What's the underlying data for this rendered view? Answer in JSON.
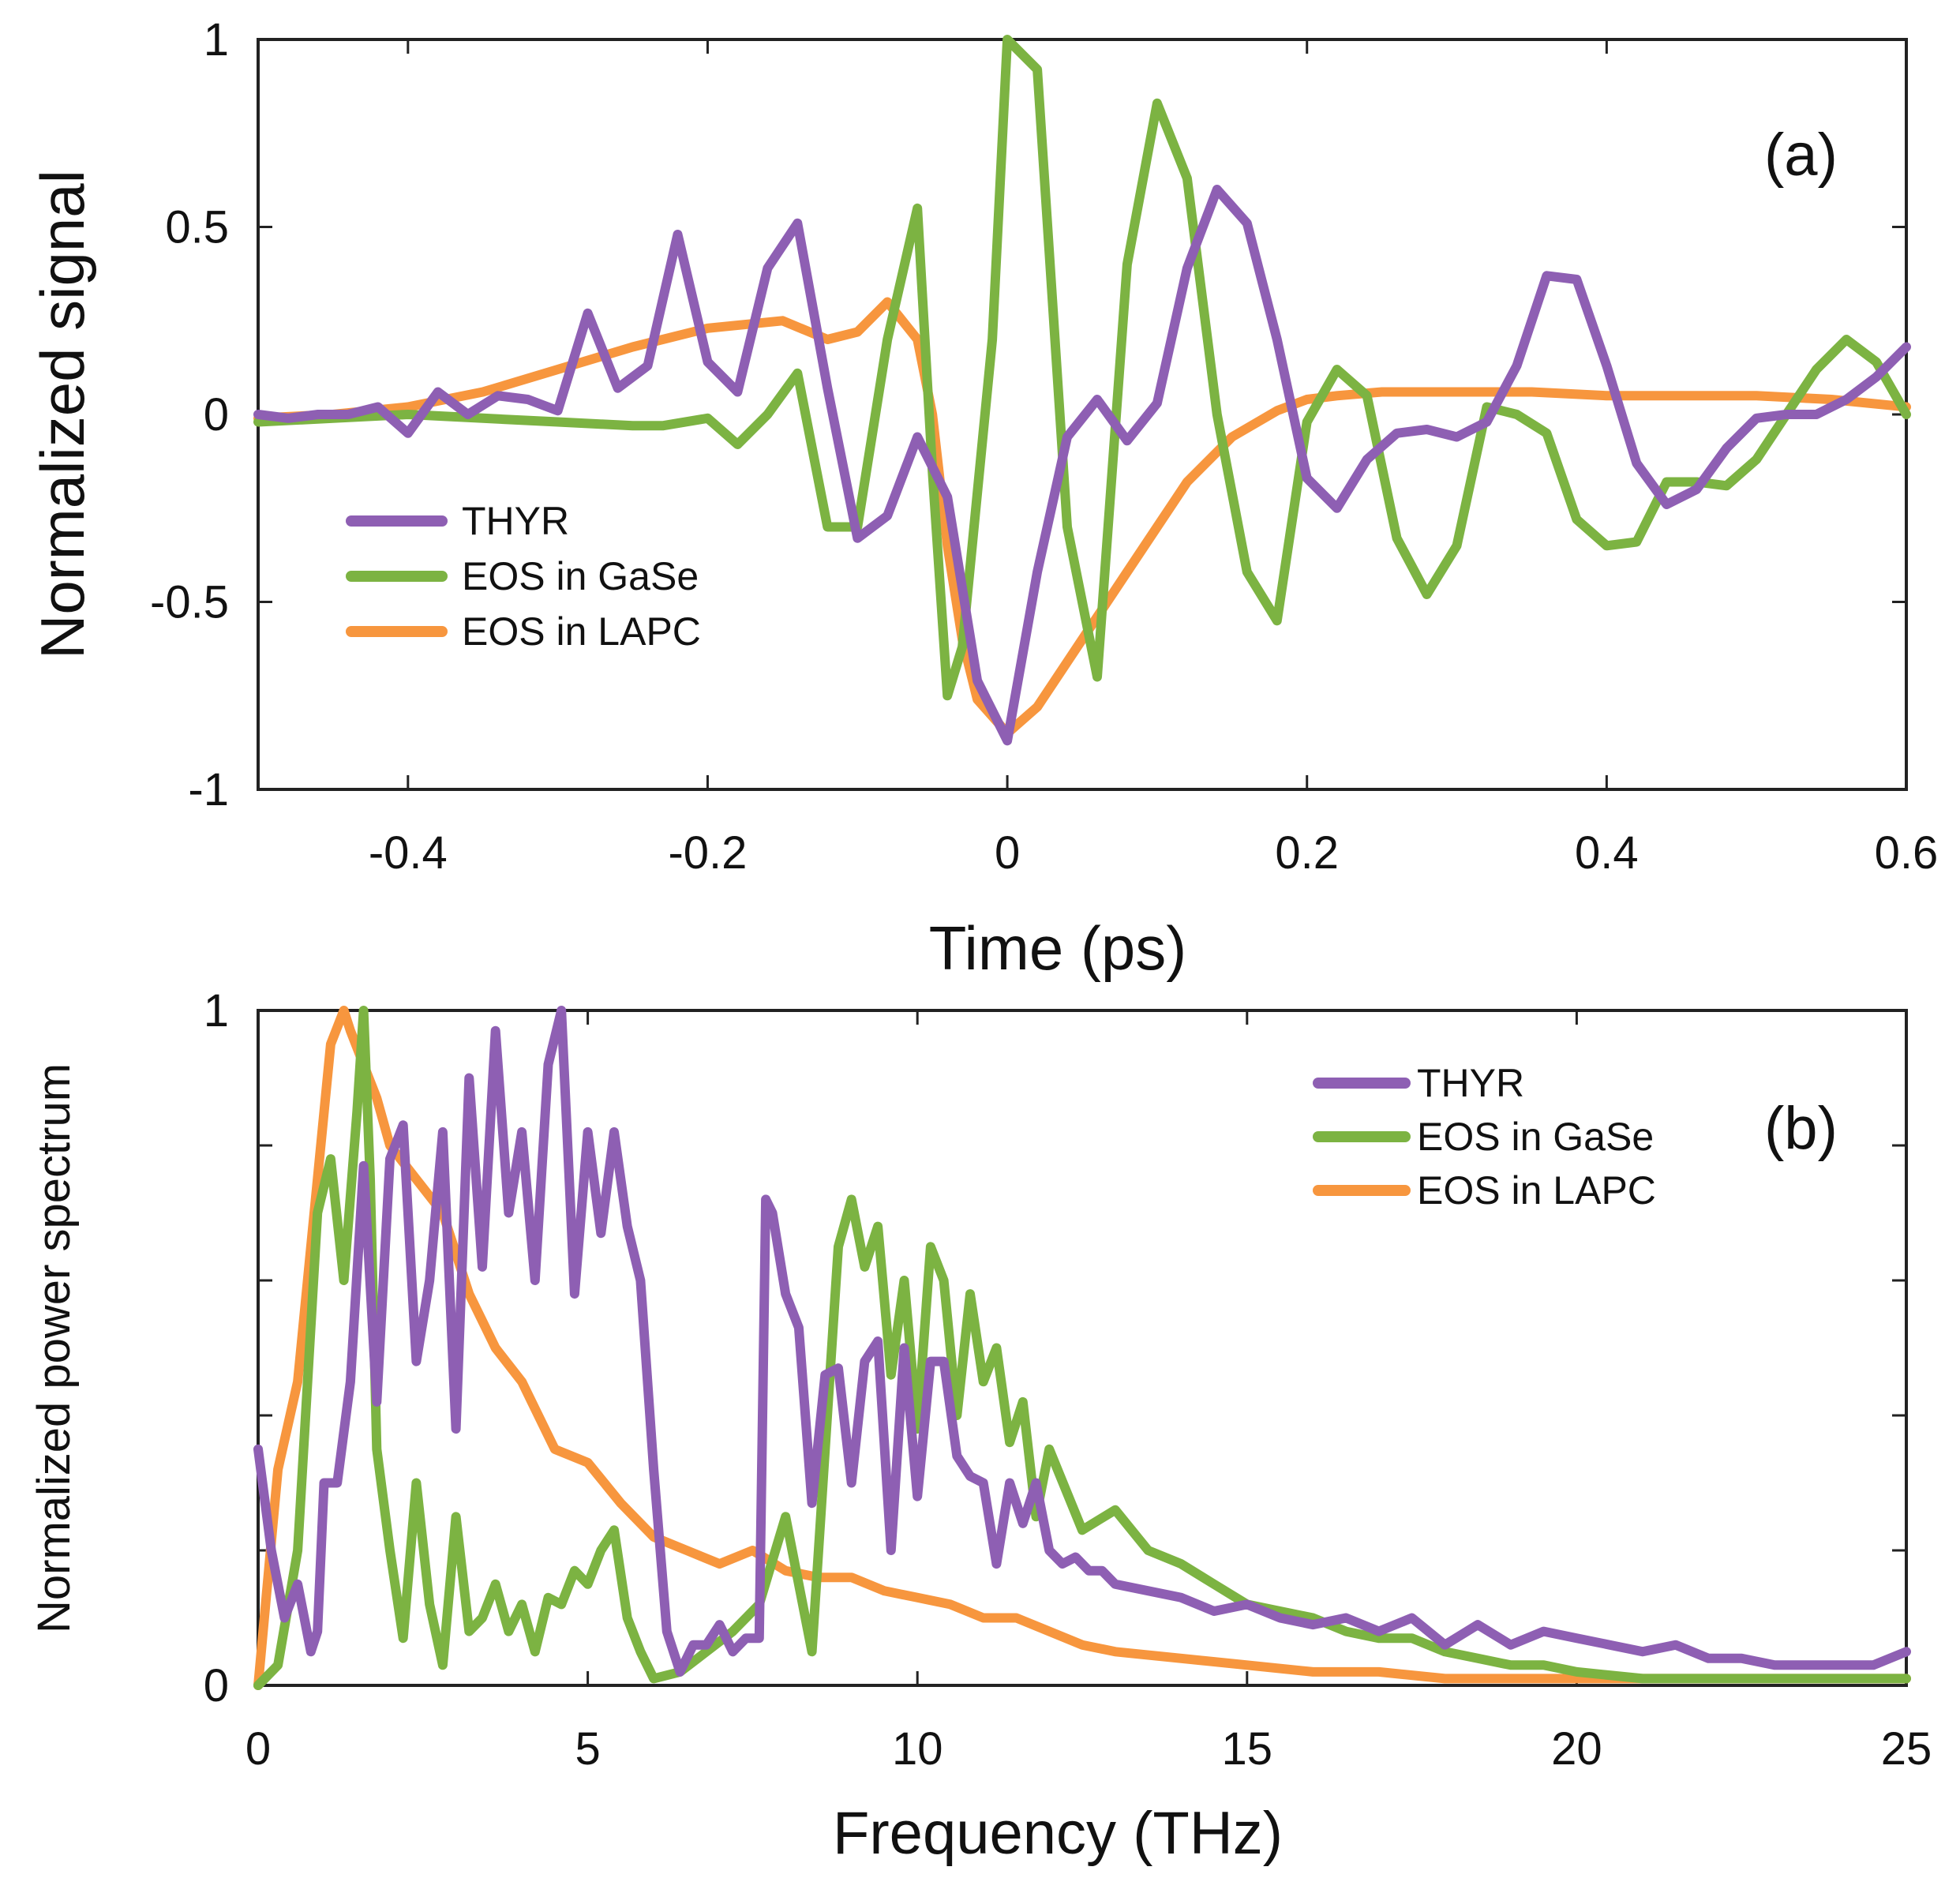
{
  "chart_data": [
    {
      "type": "line",
      "panel_label": "(a)",
      "xlabel": "Time (ps)",
      "ylabel": "Normalized signal",
      "xlim": [
        -0.5,
        0.6
      ],
      "ylim": [
        -1,
        1
      ],
      "xticks": [
        -0.4,
        -0.2,
        0,
        0.2,
        0.4,
        0.6
      ],
      "xtick_labels": [
        "-0.4",
        "-0.2",
        "0",
        "0.2",
        "0.4",
        "0.6"
      ],
      "yticks": [
        -1,
        -0.5,
        0,
        0.5,
        1
      ],
      "ytick_labels": [
        "-1",
        "-0.5",
        "0",
        "0.5",
        "1"
      ],
      "grid": false,
      "legend_position": "left",
      "series": [
        {
          "name": "THYR",
          "color": "#8e5fb3",
          "x": [
            -0.5,
            -0.48,
            -0.46,
            -0.44,
            -0.42,
            -0.4,
            -0.38,
            -0.36,
            -0.34,
            -0.32,
            -0.3,
            -0.28,
            -0.26,
            -0.24,
            -0.22,
            -0.2,
            -0.18,
            -0.16,
            -0.14,
            -0.12,
            -0.1,
            -0.08,
            -0.06,
            -0.04,
            -0.02,
            0,
            0.02,
            0.04,
            0.06,
            0.08,
            0.1,
            0.12,
            0.14,
            0.16,
            0.18,
            0.2,
            0.22,
            0.24,
            0.26,
            0.28,
            0.3,
            0.32,
            0.34,
            0.36,
            0.38,
            0.4,
            0.42,
            0.44,
            0.46,
            0.48,
            0.5,
            0.52,
            0.54,
            0.56,
            0.58,
            0.6
          ],
          "y": [
            0,
            -0.01,
            0,
            0,
            0.02,
            -0.05,
            0.06,
            0,
            0.05,
            0.04,
            0.01,
            0.27,
            0.07,
            0.13,
            0.48,
            0.14,
            0.06,
            0.39,
            0.51,
            0.07,
            -0.33,
            -0.27,
            -0.06,
            -0.22,
            -0.71,
            -0.87,
            -0.42,
            -0.06,
            0.04,
            -0.07,
            0.03,
            0.39,
            0.6,
            0.51,
            0.2,
            -0.17,
            -0.25,
            -0.12,
            -0.05,
            -0.04,
            -0.06,
            -0.02,
            0.13,
            0.37,
            0.36,
            0.13,
            -0.13,
            -0.24,
            -0.2,
            -0.09,
            -0.01,
            0,
            0,
            0.04,
            0.1,
            0.18
          ]
        },
        {
          "name": "EOS in GaSe",
          "color": "#7cb342",
          "x": [
            -0.5,
            -0.45,
            -0.4,
            -0.35,
            -0.3,
            -0.25,
            -0.23,
            -0.2,
            -0.18,
            -0.16,
            -0.14,
            -0.12,
            -0.1,
            -0.08,
            -0.06,
            -0.05,
            -0.04,
            -0.03,
            -0.01,
            0,
            0.02,
            0.04,
            0.06,
            0.08,
            0.1,
            0.12,
            0.14,
            0.16,
            0.18,
            0.2,
            0.22,
            0.24,
            0.26,
            0.28,
            0.3,
            0.32,
            0.34,
            0.36,
            0.38,
            0.4,
            0.42,
            0.44,
            0.46,
            0.48,
            0.5,
            0.52,
            0.54,
            0.56,
            0.58,
            0.6
          ],
          "y": [
            -0.02,
            -0.01,
            0,
            -0.01,
            -0.02,
            -0.03,
            -0.03,
            -0.01,
            -0.08,
            0.0,
            0.11,
            -0.3,
            -0.3,
            0.2,
            0.55,
            -0.15,
            -0.75,
            -0.62,
            0.2,
            1.0,
            0.92,
            -0.3,
            -0.7,
            0.4,
            0.83,
            0.63,
            0.0,
            -0.42,
            -0.55,
            -0.02,
            0.12,
            0.05,
            -0.33,
            -0.48,
            -0.35,
            0.02,
            0.0,
            -0.05,
            -0.28,
            -0.35,
            -0.34,
            -0.18,
            -0.18,
            -0.19,
            -0.12,
            0.0,
            0.12,
            0.2,
            0.14,
            0.0
          ]
        },
        {
          "name": "EOS in LAPC",
          "color": "#f7963e",
          "x": [
            -0.5,
            -0.45,
            -0.4,
            -0.35,
            -0.3,
            -0.25,
            -0.2,
            -0.15,
            -0.12,
            -0.1,
            -0.08,
            -0.06,
            -0.05,
            -0.04,
            -0.03,
            -0.02,
            0,
            0.02,
            0.05,
            0.08,
            0.1,
            0.12,
            0.15,
            0.18,
            0.2,
            0.22,
            0.25,
            0.3,
            0.35,
            0.4,
            0.45,
            0.5,
            0.55,
            0.6
          ],
          "y": [
            -0.01,
            0,
            0.02,
            0.06,
            0.12,
            0.18,
            0.23,
            0.25,
            0.2,
            0.22,
            0.3,
            0.2,
            0.0,
            -0.35,
            -0.6,
            -0.76,
            -0.85,
            -0.78,
            -0.6,
            -0.42,
            -0.3,
            -0.18,
            -0.06,
            0.01,
            0.04,
            0.05,
            0.06,
            0.06,
            0.06,
            0.05,
            0.05,
            0.05,
            0.04,
            0.02
          ]
        }
      ]
    },
    {
      "type": "line",
      "panel_label": "(b)",
      "xlabel": "Frequency (THz)",
      "ylabel": "Normalized power spectrum",
      "xlim": [
        0,
        25
      ],
      "ylim": [
        0,
        1
      ],
      "xticks": [
        0,
        5,
        10,
        15,
        20,
        25
      ],
      "xtick_labels": [
        "0",
        "5",
        "10",
        "15",
        "20",
        "25"
      ],
      "yticks": [
        0,
        0.2,
        0.4,
        0.6,
        0.8,
        1
      ],
      "ytick_labels": [
        "0",
        "",
        "",
        "",
        "",
        "1"
      ],
      "grid": false,
      "legend_position": "top-right",
      "series": [
        {
          "name": "THYR",
          "color": "#8e5fb3",
          "x": [
            0,
            0.2,
            0.4,
            0.6,
            0.8,
            0.9,
            1.0,
            1.2,
            1.4,
            1.6,
            1.8,
            2.0,
            2.2,
            2.4,
            2.6,
            2.8,
            3.0,
            3.2,
            3.4,
            3.6,
            3.8,
            4.0,
            4.2,
            4.4,
            4.6,
            4.8,
            5.0,
            5.2,
            5.4,
            5.6,
            5.8,
            6.0,
            6.2,
            6.4,
            6.6,
            6.8,
            7.0,
            7.2,
            7.4,
            7.6,
            7.7,
            7.8,
            8.0,
            8.2,
            8.4,
            8.6,
            8.8,
            9.0,
            9.2,
            9.4,
            9.6,
            9.8,
            10.0,
            10.2,
            10.4,
            10.6,
            10.8,
            11.0,
            11.2,
            11.4,
            11.6,
            11.8,
            12.0,
            12.2,
            12.4,
            12.6,
            12.8,
            13.0,
            13.5,
            14.0,
            14.5,
            15.0,
            15.5,
            16.0,
            16.5,
            17.0,
            17.5,
            18.0,
            18.5,
            19.0,
            19.5,
            20.0,
            20.5,
            21.0,
            21.5,
            22.0,
            22.5,
            23.0,
            23.5,
            24.0,
            24.5,
            25.0
          ],
          "y": [
            0.35,
            0.2,
            0.1,
            0.15,
            0.05,
            0.08,
            0.3,
            0.3,
            0.45,
            0.77,
            0.42,
            0.78,
            0.83,
            0.48,
            0.6,
            0.82,
            0.38,
            0.9,
            0.62,
            0.97,
            0.7,
            0.82,
            0.6,
            0.92,
            1.0,
            0.58,
            0.82,
            0.67,
            0.82,
            0.68,
            0.6,
            0.32,
            0.08,
            0.02,
            0.06,
            0.06,
            0.09,
            0.05,
            0.07,
            0.07,
            0.72,
            0.7,
            0.58,
            0.53,
            0.27,
            0.46,
            0.47,
            0.3,
            0.48,
            0.51,
            0.2,
            0.5,
            0.28,
            0.48,
            0.48,
            0.34,
            0.31,
            0.3,
            0.18,
            0.3,
            0.24,
            0.3,
            0.2,
            0.18,
            0.19,
            0.17,
            0.17,
            0.15,
            0.14,
            0.13,
            0.11,
            0.12,
            0.1,
            0.09,
            0.1,
            0.08,
            0.1,
            0.06,
            0.09,
            0.06,
            0.08,
            0.07,
            0.06,
            0.05,
            0.06,
            0.04,
            0.04,
            0.03,
            0.03,
            0.03,
            0.03,
            0.05
          ]
        },
        {
          "name": "EOS in GaSe",
          "color": "#7cb342",
          "x": [
            0,
            0.3,
            0.6,
            0.9,
            1.1,
            1.3,
            1.5,
            1.6,
            1.7,
            1.8,
            2.0,
            2.2,
            2.4,
            2.6,
            2.8,
            3.0,
            3.2,
            3.4,
            3.6,
            3.8,
            4.0,
            4.2,
            4.4,
            4.6,
            4.8,
            5.0,
            5.2,
            5.4,
            5.6,
            5.8,
            6.0,
            6.4,
            6.8,
            7.2,
            7.6,
            8.0,
            8.4,
            8.8,
            9.0,
            9.2,
            9.4,
            9.6,
            9.8,
            10.0,
            10.2,
            10.4,
            10.6,
            10.8,
            11.0,
            11.2,
            11.4,
            11.6,
            11.8,
            12.0,
            12.5,
            13.0,
            13.5,
            14.0,
            14.5,
            15.0,
            15.5,
            16.0,
            16.5,
            17.0,
            17.5,
            18.0,
            18.5,
            19.0,
            19.5,
            20.0,
            21.0,
            22.0,
            23.0,
            24.0,
            25.0
          ],
          "y": [
            0,
            0.03,
            0.2,
            0.7,
            0.78,
            0.6,
            0.85,
            1.0,
            0.75,
            0.35,
            0.2,
            0.07,
            0.3,
            0.12,
            0.03,
            0.25,
            0.08,
            0.1,
            0.15,
            0.08,
            0.12,
            0.05,
            0.13,
            0.12,
            0.17,
            0.15,
            0.2,
            0.23,
            0.1,
            0.05,
            0.01,
            0.02,
            0.05,
            0.08,
            0.12,
            0.25,
            0.05,
            0.65,
            0.72,
            0.62,
            0.68,
            0.46,
            0.6,
            0.38,
            0.65,
            0.6,
            0.4,
            0.58,
            0.45,
            0.5,
            0.36,
            0.42,
            0.25,
            0.35,
            0.23,
            0.26,
            0.2,
            0.18,
            0.15,
            0.12,
            0.11,
            0.1,
            0.08,
            0.07,
            0.07,
            0.05,
            0.04,
            0.03,
            0.03,
            0.02,
            0.01,
            0.01,
            0.01,
            0.01,
            0.01
          ]
        },
        {
          "name": "EOS in LAPC",
          "color": "#f7963e",
          "x": [
            0,
            0.3,
            0.6,
            0.9,
            1.1,
            1.3,
            1.4,
            1.6,
            1.8,
            2.0,
            2.4,
            2.8,
            3.2,
            3.6,
            4.0,
            4.5,
            5.0,
            5.5,
            6.0,
            6.5,
            7.0,
            7.5,
            8.0,
            8.5,
            9.0,
            9.5,
            10.0,
            10.5,
            11.0,
            11.5,
            12.0,
            12.5,
            13.0,
            14.0,
            15.0,
            16.0,
            17.0,
            18.0,
            19.0,
            20.0,
            21.0,
            22.0,
            23.0,
            24.0,
            25.0
          ],
          "y": [
            0,
            0.32,
            0.45,
            0.75,
            0.95,
            1.0,
            0.97,
            0.92,
            0.87,
            0.8,
            0.75,
            0.7,
            0.58,
            0.5,
            0.45,
            0.35,
            0.33,
            0.27,
            0.22,
            0.2,
            0.18,
            0.2,
            0.17,
            0.16,
            0.16,
            0.14,
            0.13,
            0.12,
            0.1,
            0.1,
            0.08,
            0.06,
            0.05,
            0.04,
            0.03,
            0.02,
            0.02,
            0.01,
            0.01,
            0.01,
            0.01,
            0.01,
            0.01,
            0.01,
            0.01
          ]
        }
      ]
    }
  ]
}
